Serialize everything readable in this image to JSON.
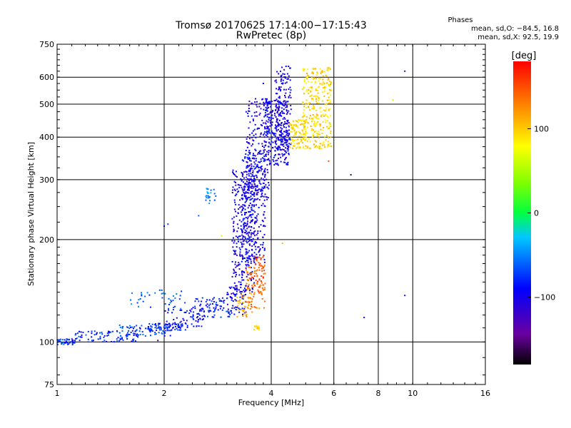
{
  "chart_data": {
    "type": "scatter",
    "title": "Tromsø 20170625 17:14:00−17:15:43",
    "subtitle": "RwPretec (8p)",
    "xlabel": "Frequency [MHz]",
    "ylabel": "Stationary phase Virtual Height [km]",
    "x_scale": "log",
    "y_scale": "log",
    "xlim": [
      1,
      16
    ],
    "ylim": [
      75,
      750
    ],
    "x_ticks": [
      {
        "value": 1,
        "label": "1"
      },
      {
        "value": 2,
        "label": "2"
      },
      {
        "value": 4,
        "label": "4"
      },
      {
        "value": 6,
        "label": "6"
      },
      {
        "value": 8,
        "label": "8"
      },
      {
        "value": 10,
        "label": "10"
      },
      {
        "value": 16,
        "label": "16"
      }
    ],
    "x_gridlines": [
      2,
      4,
      6,
      8,
      10
    ],
    "y_ticks": [
      {
        "value": 75,
        "label": "75"
      },
      {
        "value": 100,
        "label": "100"
      },
      {
        "value": 200,
        "label": "200"
      },
      {
        "value": 300,
        "label": "300"
      },
      {
        "value": 400,
        "label": "400"
      },
      {
        "value": 500,
        "label": "500"
      },
      {
        "value": 600,
        "label": "600"
      },
      {
        "value": 750,
        "label": "750"
      }
    ],
    "y_gridlines": [
      100,
      200,
      300,
      400,
      500,
      600
    ],
    "phase_stats": {
      "heading": "Phases",
      "o_line": "mean, sd,O:  −84.5, 16.8",
      "x_line": "mean, sd,X:  92.5, 19.9"
    },
    "colorbar": {
      "title": "[deg]",
      "range": [
        -180,
        180
      ],
      "ticks": [
        {
          "value": 100,
          "label": "100"
        },
        {
          "value": 0,
          "label": "0"
        },
        {
          "value": -100,
          "label": "−100"
        }
      ]
    },
    "point_generation": {
      "note": "dense echo traces; each trace segment lists freq range [MHz], height range [km], phase [deg], point count",
      "traces": [
        {
          "f": [
            1.0,
            1.12
          ],
          "h": [
            98,
            102
          ],
          "phase": -75,
          "n": 40
        },
        {
          "f": [
            1.12,
            1.7
          ],
          "h": [
            100,
            108
          ],
          "phase": -80,
          "n": 90
        },
        {
          "f": [
            1.5,
            2.1
          ],
          "h": [
            104,
            112
          ],
          "phase": -70,
          "n": 70
        },
        {
          "f": [
            1.8,
            2.3
          ],
          "h": [
            108,
            114
          ],
          "phase": -85,
          "n": 60
        },
        {
          "f": [
            2.0,
            2.6
          ],
          "h": [
            110,
            125
          ],
          "phase": -90,
          "n": 60
        },
        {
          "f": [
            2.4,
            3.05
          ],
          "h": [
            118,
            135
          ],
          "phase": -80,
          "n": 80
        },
        {
          "f": [
            1.6,
            2.3
          ],
          "h": [
            125,
            142
          ],
          "phase": -60,
          "n": 40
        },
        {
          "f": [
            3.0,
            3.4
          ],
          "h": [
            120,
            145
          ],
          "phase": -95,
          "n": 70
        },
        {
          "f": [
            3.1,
            3.6
          ],
          "h": [
            140,
            320
          ],
          "phase": -100,
          "n": 280
        },
        {
          "f": [
            3.3,
            3.85
          ],
          "h": [
            170,
            360
          ],
          "phase": -95,
          "n": 300
        },
        {
          "f": [
            3.4,
            3.95
          ],
          "h": [
            260,
            520
          ],
          "phase": -100,
          "n": 200
        },
        {
          "f": [
            3.8,
            4.5
          ],
          "h": [
            330,
            520
          ],
          "phase": -95,
          "n": 260
        },
        {
          "f": [
            4.1,
            4.55
          ],
          "h": [
            360,
            650
          ],
          "phase": -100,
          "n": 170
        },
        {
          "f": [
            3.2,
            3.55
          ],
          "h": [
            118,
            140
          ],
          "phase": 110,
          "n": 40
        },
        {
          "f": [
            3.4,
            3.85
          ],
          "h": [
            125,
            170
          ],
          "phase": 135,
          "n": 80
        },
        {
          "f": [
            3.6,
            3.85
          ],
          "h": [
            140,
            180
          ],
          "phase": 150,
          "n": 40
        },
        {
          "f": [
            3.55,
            3.75
          ],
          "h": [
            108,
            112
          ],
          "phase": 95,
          "n": 14
        },
        {
          "f": [
            4.5,
            5.0
          ],
          "h": [
            370,
            450
          ],
          "phase": 90,
          "n": 90
        },
        {
          "f": [
            4.9,
            5.9
          ],
          "h": [
            370,
            640
          ],
          "phase": 95,
          "n": 320
        },
        {
          "f": [
            2.6,
            2.8
          ],
          "h": [
            255,
            285
          ],
          "phase": -50,
          "n": 22
        }
      ],
      "sparse_points": [
        {
          "f": 9.5,
          "h": 625,
          "phase": -120
        },
        {
          "f": 8.8,
          "h": 515,
          "phase": 60
        },
        {
          "f": 6.7,
          "h": 310,
          "phase": -160
        },
        {
          "f": 9.5,
          "h": 137,
          "phase": -110
        },
        {
          "f": 7.3,
          "h": 118,
          "phase": -100
        },
        {
          "f": 2.0,
          "h": 219,
          "phase": -90
        },
        {
          "f": 2.05,
          "h": 222,
          "phase": -70
        },
        {
          "f": 2.5,
          "h": 235,
          "phase": -60
        },
        {
          "f": 2.9,
          "h": 205,
          "phase": 60
        },
        {
          "f": 1.92,
          "h": 101,
          "phase": -160
        },
        {
          "f": 1.5,
          "h": 112,
          "phase": -60
        },
        {
          "f": 5.8,
          "h": 340,
          "phase": 150
        },
        {
          "f": 4.3,
          "h": 195,
          "phase": 110
        },
        {
          "f": 3.8,
          "h": 575,
          "phase": -90
        }
      ]
    }
  }
}
